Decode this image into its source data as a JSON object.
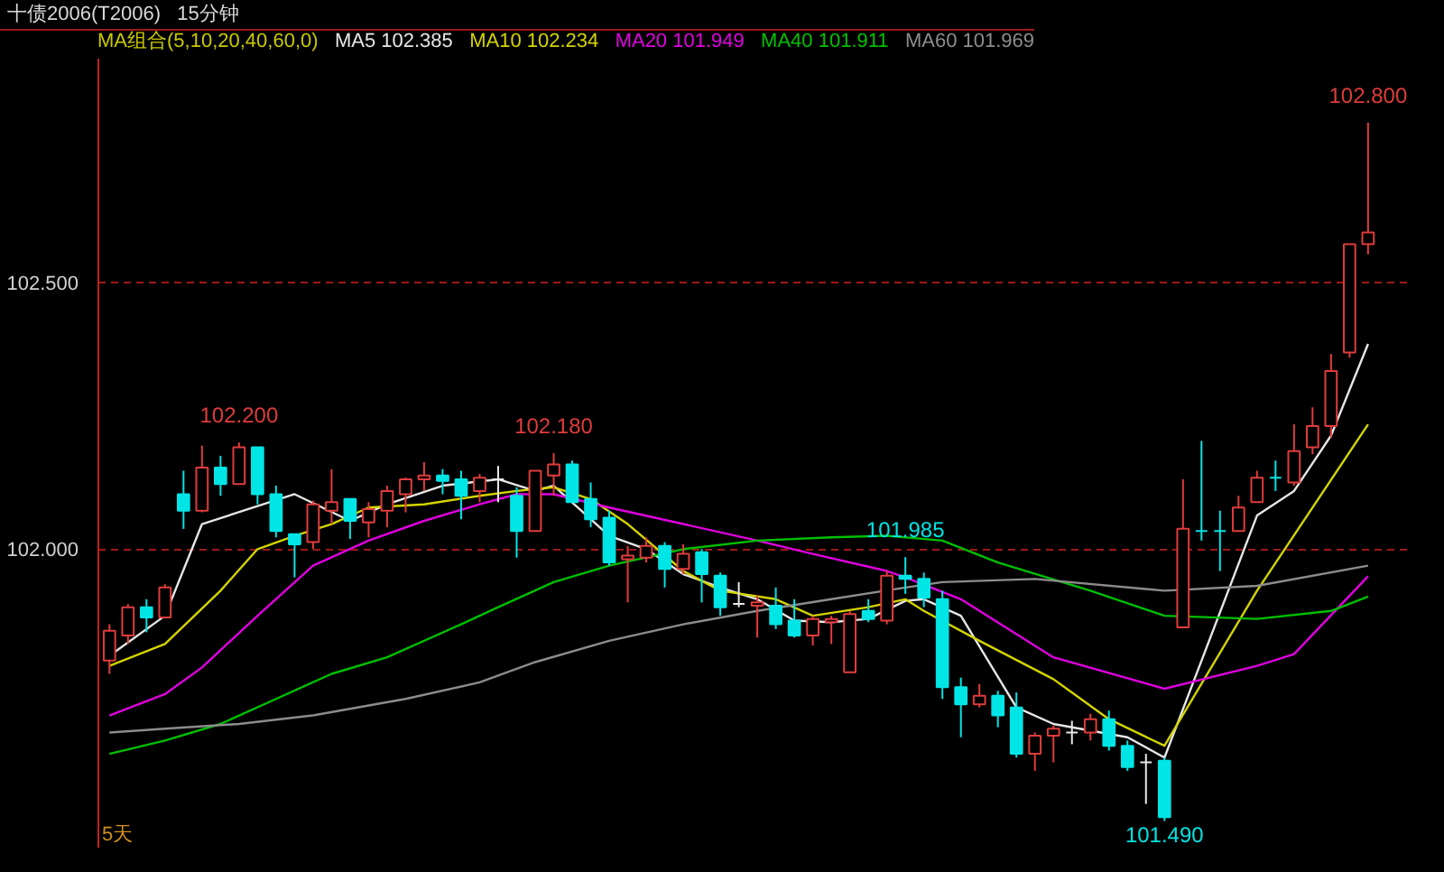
{
  "chart_data": {
    "type": "candlestick",
    "title": "十债2006(T2006)",
    "subtitle": "15分钟",
    "legend_title": "MA组合(5,10,20,40,60,0)",
    "categories": [
      null,
      null,
      null,
      null,
      null,
      null,
      null,
      null,
      null,
      null,
      null,
      null,
      null,
      null,
      null,
      null,
      null,
      null,
      null,
      null,
      null,
      null,
      null,
      null,
      null,
      null,
      null,
      null,
      null,
      null,
      null,
      null,
      null,
      null,
      null,
      null,
      null,
      null,
      null,
      null,
      null,
      null,
      null,
      null,
      null,
      null,
      null,
      null,
      null,
      null,
      null,
      null,
      null,
      null,
      null,
      null,
      null,
      null,
      null,
      null,
      null,
      null,
      null,
      null,
      null,
      null,
      null,
      null,
      null
    ],
    "ohlc": [
      [
        101.791,
        101.859,
        101.766,
        101.847
      ],
      [
        101.838,
        101.897,
        101.822,
        101.891
      ],
      [
        101.891,
        101.906,
        101.844,
        101.872
      ],
      [
        101.872,
        101.934,
        101.872,
        101.928
      ],
      [
        102.103,
        102.147,
        102.038,
        102.072
      ],
      [
        102.072,
        102.194,
        102.069,
        102.153
      ],
      [
        102.153,
        102.175,
        102.1,
        102.122
      ],
      [
        102.122,
        102.2,
        102.122,
        102.191
      ],
      [
        102.191,
        102.191,
        102.084,
        102.103
      ],
      [
        102.103,
        102.119,
        102.022,
        102.034
      ],
      [
        102.028,
        102.028,
        101.947,
        102.009
      ],
      [
        102.013,
        102.091,
        102.0,
        102.084
      ],
      [
        102.072,
        102.15,
        102.047,
        102.088
      ],
      [
        102.094,
        102.094,
        102.019,
        102.053
      ],
      [
        102.05,
        102.088,
        102.022,
        102.075
      ],
      [
        102.072,
        102.119,
        102.041,
        102.109
      ],
      [
        102.103,
        102.134,
        102.069,
        102.131
      ],
      [
        102.131,
        102.163,
        102.109,
        102.138
      ],
      [
        102.138,
        102.15,
        102.103,
        102.128
      ],
      [
        102.131,
        102.147,
        102.056,
        102.1
      ],
      [
        102.109,
        102.141,
        102.088,
        102.134
      ],
      [
        102.131,
        102.156,
        102.088,
        102.131
      ],
      [
        102.1,
        102.116,
        101.984,
        102.034
      ],
      [
        102.034,
        102.147,
        102.034,
        102.147
      ],
      [
        102.138,
        102.18,
        102.1,
        102.159
      ],
      [
        102.159,
        102.166,
        102.088,
        102.088
      ],
      [
        102.094,
        102.125,
        102.041,
        102.056
      ],
      [
        102.059,
        102.072,
        101.969,
        101.975
      ],
      [
        101.981,
        102.006,
        101.9,
        101.988
      ],
      [
        101.984,
        102.022,
        101.975,
        102.006
      ],
      [
        102.006,
        102.013,
        101.928,
        101.963
      ],
      [
        101.963,
        102.009,
        101.953,
        101.991
      ],
      [
        101.994,
        102.0,
        101.9,
        101.953
      ],
      [
        101.95,
        101.956,
        101.875,
        101.891
      ],
      [
        101.897,
        101.938,
        101.891,
        101.897
      ],
      [
        101.894,
        101.913,
        101.834,
        101.9
      ],
      [
        101.894,
        101.928,
        101.85,
        101.859
      ],
      [
        101.866,
        101.906,
        101.834,
        101.838
      ],
      [
        101.838,
        101.875,
        101.819,
        101.869
      ],
      [
        101.863,
        101.875,
        101.822,
        101.869
      ],
      [
        101.769,
        101.884,
        101.769,
        101.878
      ],
      [
        101.884,
        101.906,
        101.863,
        101.869
      ],
      [
        101.866,
        101.959,
        101.859,
        101.95
      ],
      [
        101.95,
        101.985,
        101.916,
        101.944
      ],
      [
        101.944,
        101.956,
        101.891,
        101.909
      ],
      [
        101.906,
        101.922,
        101.719,
        101.741
      ],
      [
        101.741,
        101.759,
        101.647,
        101.709
      ],
      [
        101.709,
        101.747,
        101.703,
        101.725
      ],
      [
        101.725,
        101.734,
        101.666,
        101.688
      ],
      [
        101.703,
        101.731,
        101.609,
        101.616
      ],
      [
        101.616,
        101.656,
        101.584,
        101.65
      ],
      [
        101.65,
        101.669,
        101.6,
        101.663
      ],
      [
        101.656,
        101.678,
        101.634,
        101.656
      ],
      [
        101.656,
        101.691,
        101.641,
        101.681
      ],
      [
        101.681,
        101.697,
        101.622,
        101.631
      ],
      [
        101.631,
        101.641,
        101.584,
        101.591
      ],
      [
        101.6,
        101.616,
        101.522,
        101.6
      ],
      [
        101.603,
        101.609,
        101.49,
        101.497
      ],
      [
        101.853,
        102.131,
        101.853,
        102.038
      ],
      [
        102.034,
        102.203,
        102.016,
        102.034
      ],
      [
        102.034,
        102.072,
        101.959,
        102.034
      ],
      [
        102.034,
        102.1,
        102.034,
        102.078
      ],
      [
        102.088,
        102.147,
        102.088,
        102.134
      ],
      [
        102.134,
        102.166,
        102.109,
        102.134
      ],
      [
        102.125,
        102.234,
        102.119,
        102.184
      ],
      [
        102.191,
        102.266,
        102.178,
        102.231
      ],
      [
        102.231,
        102.366,
        102.209,
        102.334
      ],
      [
        102.369,
        102.572,
        102.359,
        102.572
      ],
      [
        102.572,
        102.8,
        102.553,
        102.594
      ]
    ],
    "colors": [
      "#e03c3c",
      "#e03c3c",
      "#00e5e5",
      "#e03c3c",
      "#00e5e5",
      "#e03c3c",
      "#00e5e5",
      "#e03c3c",
      "#00e5e5",
      "#00e5e5",
      "#00e5e5",
      "#e03c3c",
      "#e03c3c",
      "#00e5e5",
      "#e03c3c",
      "#e03c3c",
      "#e03c3c",
      "#e03c3c",
      "#00e5e5",
      "#00e5e5",
      "#e03c3c",
      "#e8e8e8",
      "#00e5e5",
      "#e03c3c",
      "#e03c3c",
      "#00e5e5",
      "#00e5e5",
      "#00e5e5",
      "#e03c3c",
      "#e03c3c",
      "#00e5e5",
      "#e03c3c",
      "#00e5e5",
      "#00e5e5",
      "#e8e8e8",
      "#e03c3c",
      "#00e5e5",
      "#00e5e5",
      "#e03c3c",
      "#e03c3c",
      "#e03c3c",
      "#00e5e5",
      "#e03c3c",
      "#00e5e5",
      "#00e5e5",
      "#00e5e5",
      "#00e5e5",
      "#e03c3c",
      "#00e5e5",
      "#00e5e5",
      "#e03c3c",
      "#e03c3c",
      "#e8e8e8",
      "#e03c3c",
      "#00e5e5",
      "#00e5e5",
      "#e8e8e8",
      "#00e5e5",
      "#e03c3c",
      "#00e5e5",
      "#00e5e5",
      "#e03c3c",
      "#e03c3c",
      "#00e5e5",
      "#e03c3c",
      "#e03c3c",
      "#e03c3c",
      "#e03c3c",
      "#e03c3c"
    ],
    "series": [
      {
        "type": "line",
        "name": "MA5 102.385",
        "color": "#e6e6e6",
        "values": [
          101.8,
          null,
          null,
          101.875,
          null,
          102.047,
          null,
          null,
          null,
          null,
          102.103,
          null,
          null,
          102.053,
          null,
          102.084,
          null,
          null,
          102.119,
          null,
          null,
          102.131,
          null,
          102.109,
          102.119,
          null,
          null,
          102.025,
          null,
          102.0,
          null,
          101.953,
          null,
          101.928,
          null,
          101.906,
          null,
          101.866,
          null,
          101.863,
          null,
          101.869,
          null,
          101.903,
          101.906,
          null,
          101.875,
          null,
          null,
          101.703,
          null,
          101.672,
          null,
          null,
          null,
          101.647,
          null,
          101.609,
          null,
          null,
          null,
          null,
          102.063,
          null,
          102.109,
          null,
          102.213,
          null,
          102.385
        ]
      },
      {
        "type": "line",
        "name": "MA10 102.234",
        "color": "#d4d400",
        "values": [
          101.781,
          null,
          null,
          101.822,
          null,
          null,
          101.922,
          null,
          102.0,
          null,
          102.025,
          null,
          102.047,
          null,
          102.078,
          null,
          null,
          102.084,
          null,
          null,
          102.1,
          null,
          102.109,
          null,
          102.116,
          null,
          102.094,
          null,
          102.047,
          null,
          null,
          101.959,
          null,
          101.922,
          null,
          null,
          101.906,
          null,
          101.875,
          null,
          null,
          101.891,
          null,
          101.906,
          101.884,
          null,
          null,
          101.828,
          null,
          null,
          null,
          101.756,
          null,
          null,
          101.681,
          null,
          null,
          101.631,
          null,
          null,
          null,
          null,
          101.922,
          null,
          null,
          null,
          null,
          null,
          102.234
        ]
      },
      {
        "type": "line",
        "name": "MA20 101.949",
        "color": "#e000e0",
        "values": [
          101.688,
          null,
          null,
          101.728,
          null,
          101.778,
          null,
          null,
          101.875,
          null,
          null,
          101.969,
          null,
          null,
          102.016,
          null,
          null,
          102.053,
          null,
          null,
          102.084,
          null,
          102.103,
          null,
          102.103,
          null,
          null,
          102.078,
          null,
          null,
          null,
          102.047,
          null,
          null,
          null,
          102.016,
          null,
          null,
          101.991,
          null,
          null,
          null,
          101.959,
          101.947,
          null,
          null,
          101.906,
          null,
          null,
          null,
          null,
          101.797,
          null,
          null,
          null,
          null,
          null,
          101.738,
          null,
          null,
          null,
          null,
          101.781,
          null,
          101.803,
          null,
          null,
          null,
          101.949
        ]
      },
      {
        "type": "line",
        "name": "MA40 101.911",
        "color": "#00c000",
        "values": [
          101.616,
          null,
          null,
          101.641,
          null,
          null,
          101.672,
          null,
          null,
          101.719,
          null,
          null,
          101.766,
          null,
          null,
          101.797,
          null,
          null,
          null,
          101.859,
          null,
          101.891,
          null,
          null,
          101.938,
          null,
          null,
          101.969,
          null,
          null,
          null,
          102.0,
          null,
          null,
          null,
          102.016,
          null,
          null,
          null,
          102.022,
          null,
          null,
          102.025,
          null,
          null,
          102.016,
          null,
          null,
          101.975,
          null,
          null,
          null,
          null,
          101.922,
          null,
          null,
          null,
          101.875,
          null,
          null,
          null,
          null,
          101.869,
          null,
          null,
          null,
          101.884,
          null,
          101.911
        ]
      },
      {
        "type": "line",
        "name": "MA60 101.969",
        "color": "#8c8c8c",
        "values": [
          101.656,
          null,
          null,
          101.663,
          null,
          null,
          null,
          101.672,
          null,
          null,
          null,
          101.688,
          null,
          null,
          null,
          null,
          101.719,
          null,
          null,
          null,
          101.75,
          null,
          null,
          101.788,
          null,
          null,
          null,
          101.828,
          null,
          null,
          null,
          101.859,
          null,
          null,
          null,
          101.884,
          null,
          null,
          null,
          101.906,
          null,
          null,
          null,
          101.928,
          null,
          101.938,
          null,
          null,
          null,
          null,
          101.944,
          null,
          null,
          null,
          null,
          null,
          null,
          101.922,
          null,
          null,
          null,
          null,
          101.931,
          null,
          null,
          null,
          null,
          null,
          101.969
        ]
      }
    ],
    "ylim": [
      101.44,
      102.92
    ],
    "yticks": [
      {
        "value": 102.5,
        "label": "102.500"
      },
      {
        "value": 102.0,
        "label": "102.000"
      }
    ],
    "grid": "y",
    "legend": "top left",
    "annotations": [
      {
        "text": "102.200",
        "y": 102.2
      },
      {
        "text": "102.180",
        "y": 102.18
      },
      {
        "text": "101.985",
        "y": 101.985
      },
      {
        "text": "102.800",
        "y": 102.8
      },
      {
        "text": "101.490",
        "y": 101.49
      },
      "5天"
    ]
  }
}
